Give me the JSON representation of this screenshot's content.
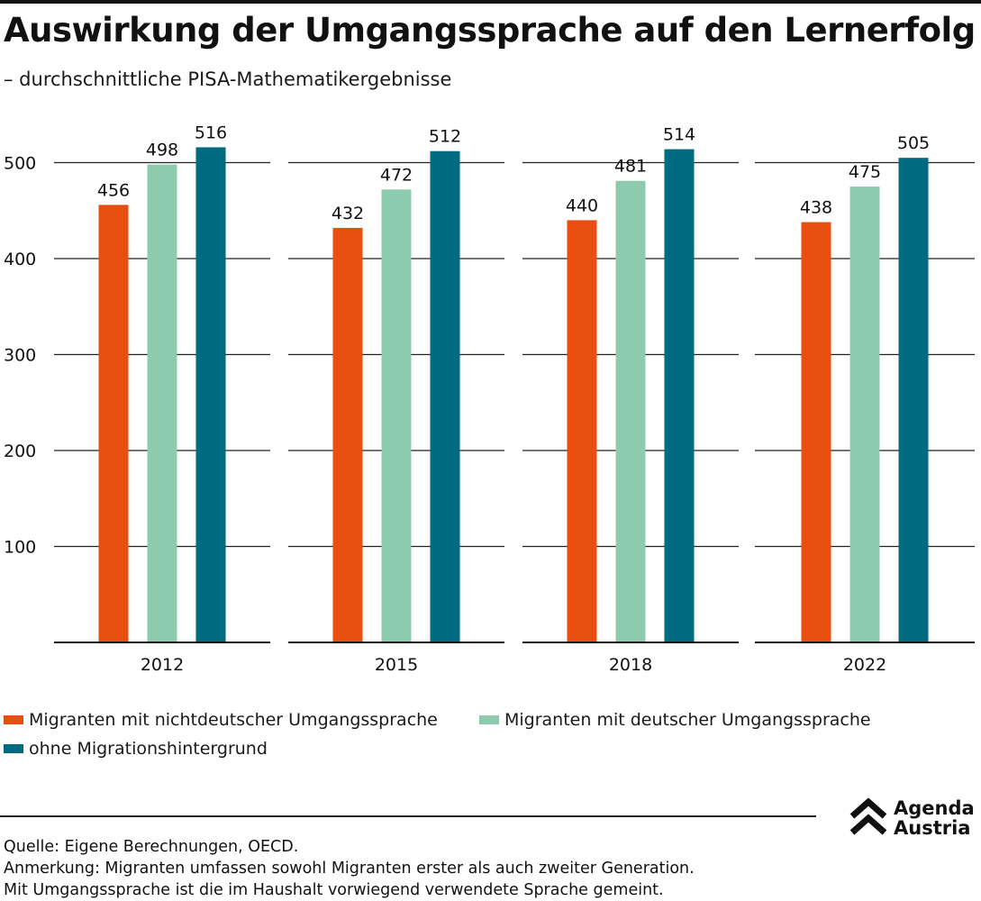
{
  "header": {
    "title": "Auswirkung der Umgangssprache auf den Lernerfolg",
    "subtitle": "– durchschnittliche PISA-Mathematikergebnisse"
  },
  "chart_data": {
    "type": "bar",
    "categories": [
      "2012",
      "2015",
      "2018",
      "2022"
    ],
    "series": [
      {
        "name": "Migranten mit nichtdeutscher Umgangssprache",
        "color": "#e84e0f",
        "values": [
          456,
          432,
          440,
          438
        ]
      },
      {
        "name": "Migranten mit deutscher Umgangssprache",
        "color": "#8ccbad",
        "values": [
          498,
          472,
          481,
          475
        ]
      },
      {
        "name": "ohne Migrationshintergrund",
        "color": "#006a80",
        "values": [
          516,
          512,
          514,
          505
        ]
      }
    ],
    "ylim": [
      0,
      500
    ],
    "yticks": [
      "100",
      "200",
      "300",
      "400",
      "500"
    ],
    "grid": true,
    "legend_position": "bottom"
  },
  "footer": {
    "source": "Quelle: Eigene Berechnungen, OECD.",
    "note1": "Anmerkung: Migranten umfassen sowohl Migranten erster als auch zweiter Generation.",
    "note2": "Mit Umgangssprache ist die im Haushalt vorwiegend verwendete Sprache gemeint."
  },
  "logo": {
    "line1": "Agenda",
    "line2": "Austria"
  }
}
